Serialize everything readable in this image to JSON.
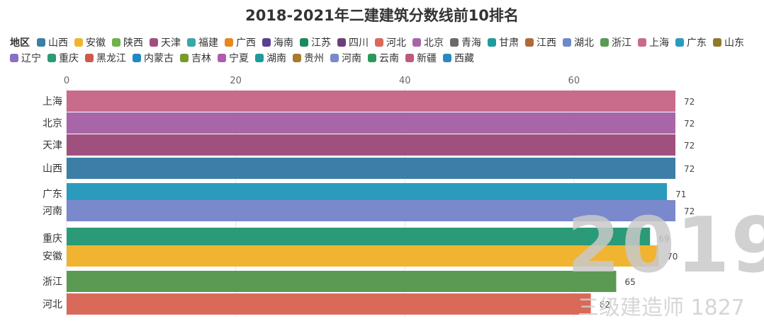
{
  "chart_data": {
    "type": "bar",
    "orientation": "horizontal",
    "title": "2018-2021年二建建筑分数线前10排名",
    "xlim": [
      0,
      72
    ],
    "x_ticks": [
      "0",
      "20",
      "40",
      "60"
    ],
    "grid": true,
    "legend_position": "top",
    "legend": {
      "label": "地区",
      "items": [
        {
          "name": "山西",
          "color": "#3d7ea6"
        },
        {
          "name": "安徽",
          "color": "#f0b431"
        },
        {
          "name": "陕西",
          "color": "#6fb14a"
        },
        {
          "name": "天津",
          "color": "#a0507e"
        },
        {
          "name": "福建",
          "color": "#3aa6a6"
        },
        {
          "name": "广西",
          "color": "#e8871e"
        },
        {
          "name": "海南",
          "color": "#5a3f8f"
        },
        {
          "name": "江苏",
          "color": "#1c8a5c"
        },
        {
          "name": "四川",
          "color": "#6d3f7a"
        },
        {
          "name": "河北",
          "color": "#d96a5a"
        },
        {
          "name": "北京",
          "color": "#a866a8"
        },
        {
          "name": "青海",
          "color": "#6a6a6a"
        },
        {
          "name": "甘肃",
          "color": "#1e9c9c"
        },
        {
          "name": "江西",
          "color": "#b06a3a"
        },
        {
          "name": "湖北",
          "color": "#6a8acb"
        },
        {
          "name": "浙江",
          "color": "#5a9a52"
        },
        {
          "name": "上海",
          "color": "#c96b8a"
        },
        {
          "name": "广东",
          "color": "#2a9bbd"
        },
        {
          "name": "山东",
          "color": "#8f7a2a"
        },
        {
          "name": "辽宁",
          "color": "#8a6fc4"
        },
        {
          "name": "重庆",
          "color": "#2a9a78"
        },
        {
          "name": "黑龙江",
          "color": "#cc5a4a"
        },
        {
          "name": "内蒙古",
          "color": "#1e88c8"
        },
        {
          "name": "吉林",
          "color": "#7a9a2a"
        },
        {
          "name": "宁夏",
          "color": "#b05ab0"
        },
        {
          "name": "湖南",
          "color": "#1e9a9a"
        },
        {
          "name": "贵州",
          "color": "#a87a2a"
        },
        {
          "name": "河南",
          "color": "#7a88cc"
        },
        {
          "name": "云南",
          "color": "#2a9a5a"
        },
        {
          "name": "新疆",
          "color": "#c05a7a"
        },
        {
          "name": "西藏",
          "color": "#2a8ac0"
        }
      ]
    },
    "bars": [
      {
        "category": "上海",
        "value": 72,
        "value_label": "72",
        "color": "#c96b8a"
      },
      {
        "category": "北京",
        "value": 72,
        "value_label": "72",
        "color": "#a866a8"
      },
      {
        "category": "天津",
        "value": 72,
        "value_label": "72",
        "color": "#a0507e"
      },
      {
        "category": "山西",
        "value": 72,
        "value_label": "72",
        "color": "#3d7ea6"
      },
      {
        "category": "广东",
        "value": 71,
        "value_label": "71",
        "color": "#2a9bbd"
      },
      {
        "category": "河南",
        "value": 72,
        "value_label": "72",
        "color": "#7a88cc"
      },
      {
        "category": "重庆",
        "value": 69,
        "value_label": "69",
        "color": "#2a9a78"
      },
      {
        "category": "安徽",
        "value": 70,
        "value_label": "70",
        "color": "#f0b431"
      },
      {
        "category": "浙江",
        "value": 65,
        "value_label": "65",
        "color": "#5a9a52"
      },
      {
        "category": "河北",
        "value": 62,
        "value_label": "62",
        "color": "#d96a5a"
      }
    ]
  },
  "watermark": {
    "year": "2019",
    "brand": "三级建造师 1827"
  }
}
